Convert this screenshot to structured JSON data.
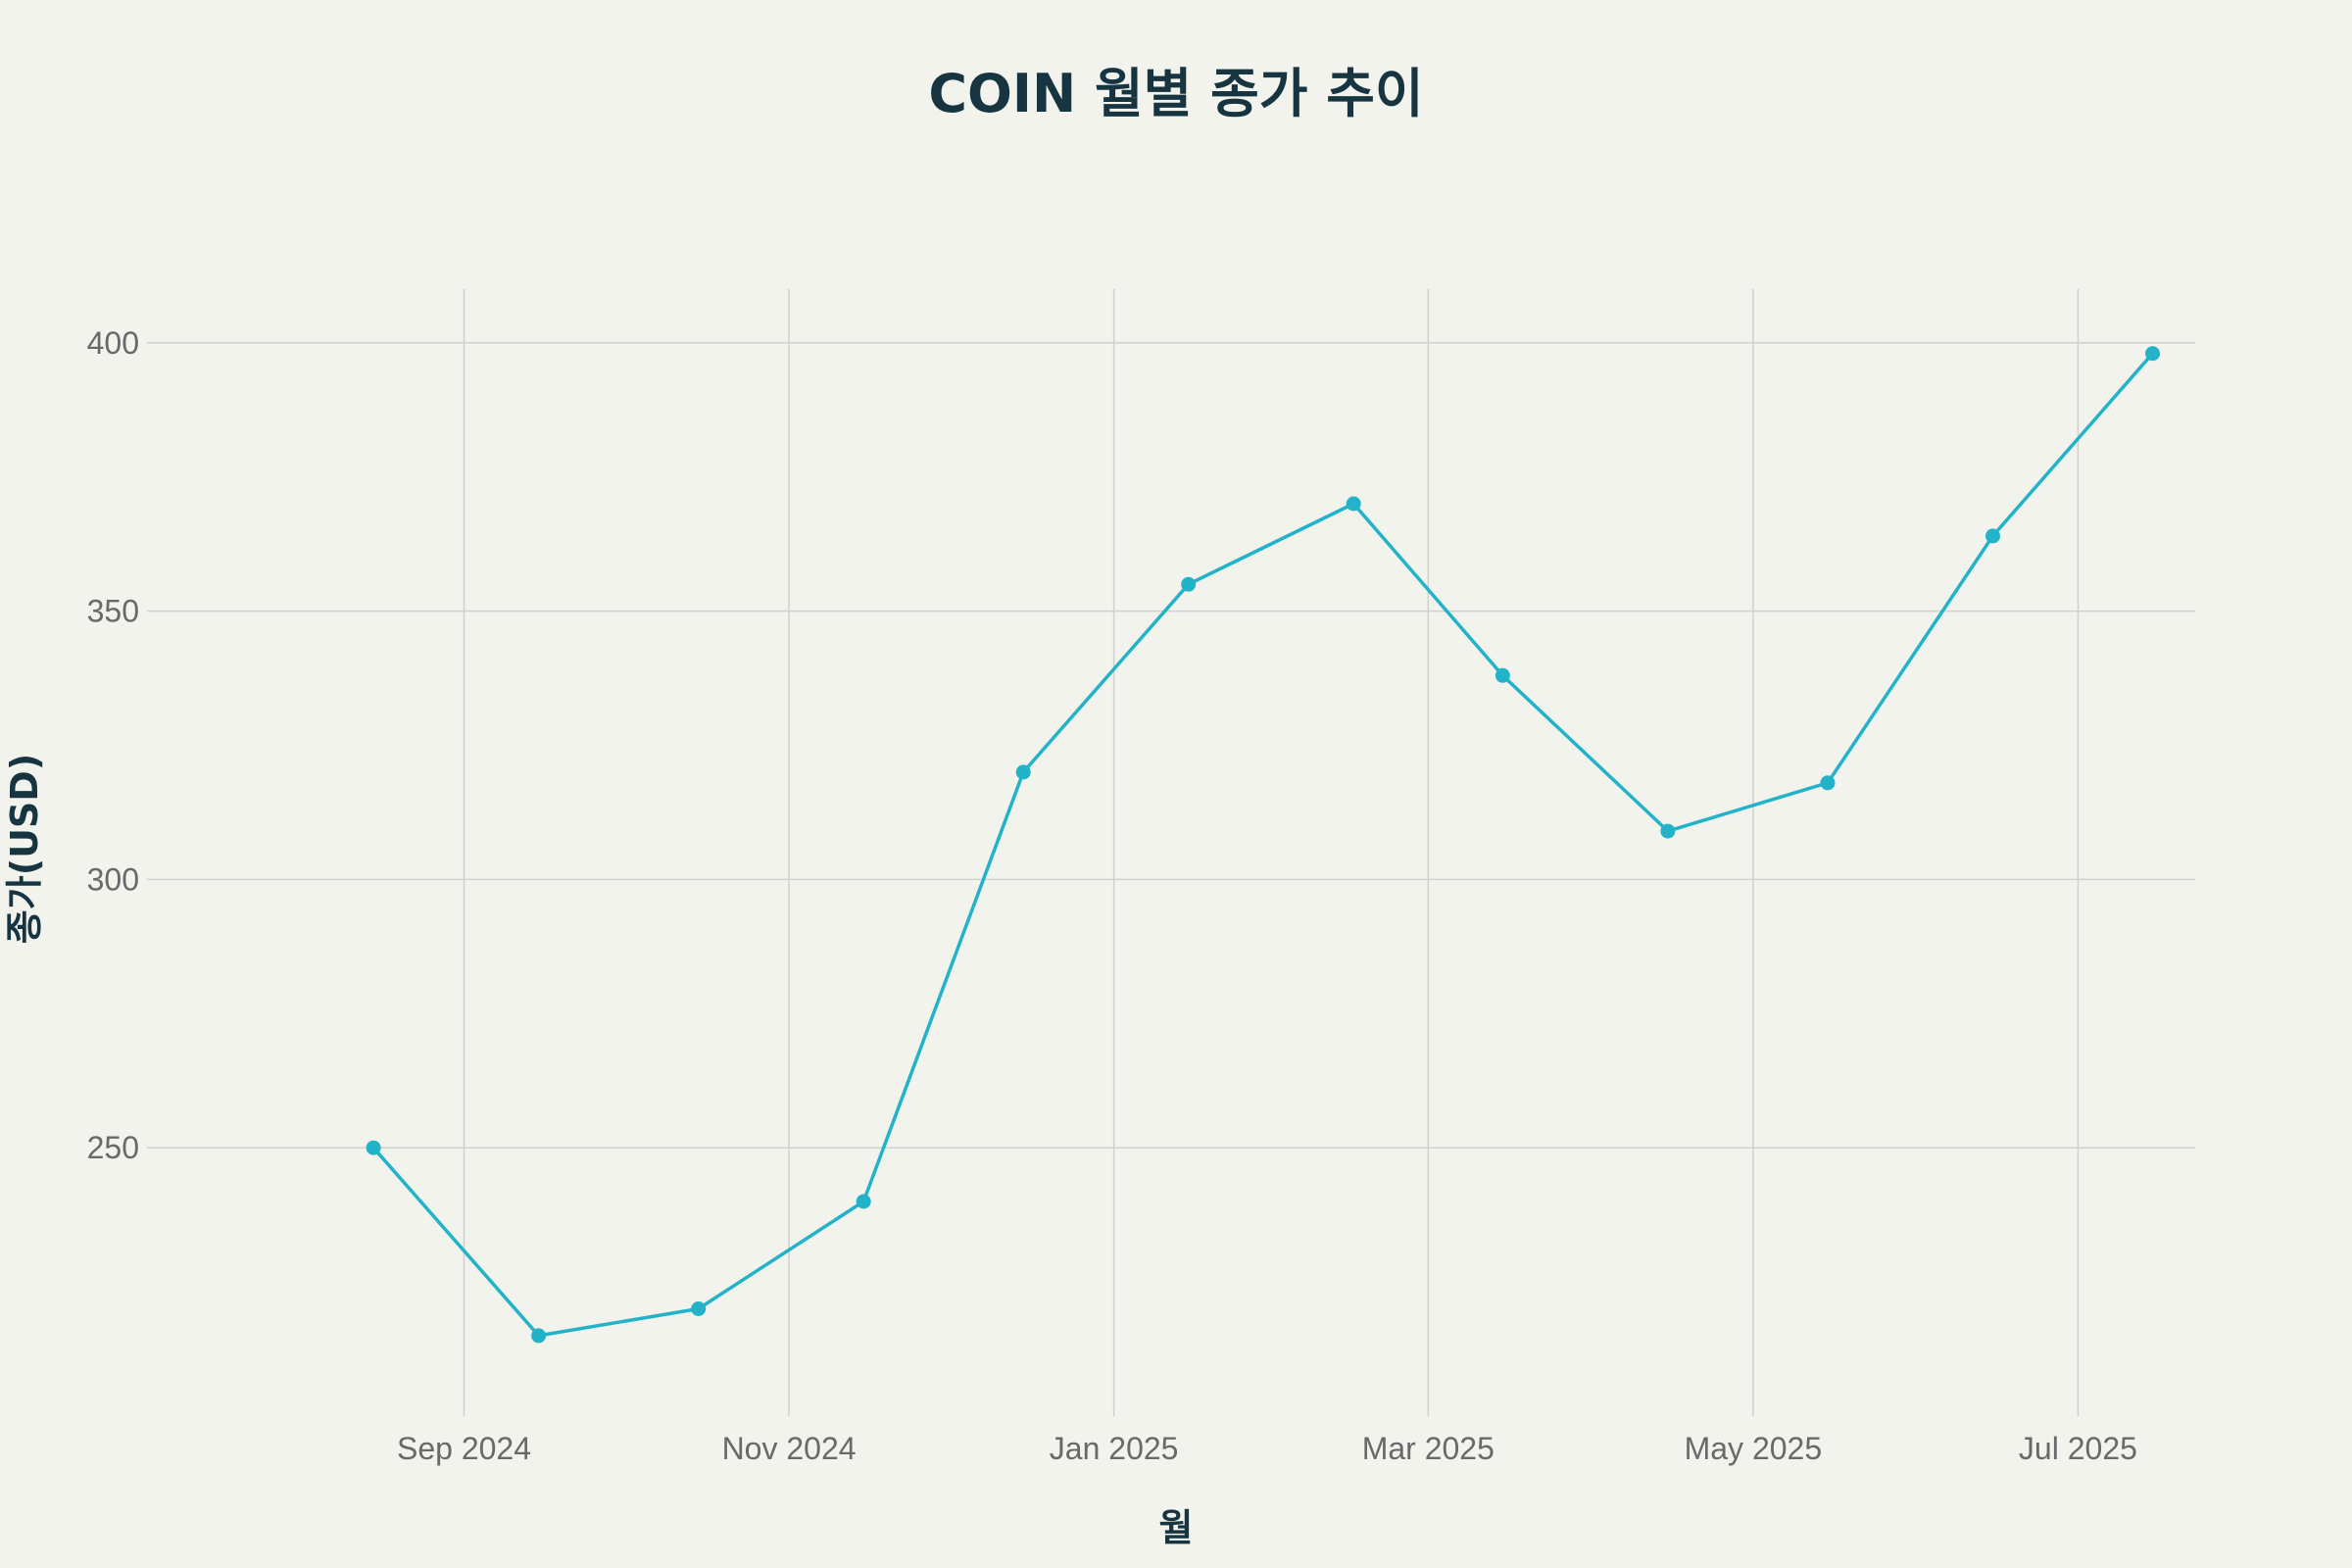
{
  "chart_data": {
    "type": "line",
    "title": "COIN 월별 종가 추이",
    "xlabel": "월",
    "ylabel": "종가(USD)",
    "x": [
      "2024-08",
      "2024-09",
      "2024-10",
      "2024-11",
      "2024-12",
      "2025-01",
      "2025-02",
      "2025-03",
      "2025-04",
      "2025-05",
      "2025-06",
      "2025-07"
    ],
    "series": [
      {
        "values": [
          250,
          215,
          220,
          240,
          320,
          355,
          370,
          338,
          309,
          318,
          364,
          398
        ]
      }
    ],
    "x_ticks": [
      {
        "x": "2024-09",
        "label": "Sep 2024"
      },
      {
        "x": "2024-11",
        "label": "Nov 2024"
      },
      {
        "x": "2025-01",
        "label": "Jan 2025"
      },
      {
        "x": "2025-03",
        "label": "Mar 2025"
      },
      {
        "x": "2025-05",
        "label": "May 2025"
      },
      {
        "x": "2025-07",
        "label": "Jul 2025"
      }
    ],
    "y_ticks": [
      250,
      300,
      350,
      400
    ],
    "xlim": [
      "2024-07-09",
      "2025-07-23"
    ],
    "ylim": [
      200,
      410
    ],
    "grid": true,
    "colors": {
      "line": "#22b3c9",
      "marker": "#22b3c9",
      "grid": "#d0d0cc",
      "title": "#173540",
      "tick_text": "#666a6a",
      "background": "#f3f3ee"
    }
  }
}
